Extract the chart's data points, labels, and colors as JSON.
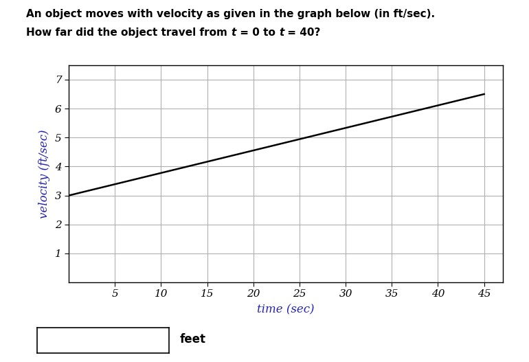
{
  "title_line1": "An object moves with velocity as given in the graph below (in ft/sec).",
  "title_line2_part1": "How far did the object travel from ",
  "title_t1": "t",
  "title_line2_part2": " = 0 to ",
  "title_t2": "t",
  "title_line2_part3": " = 40?",
  "xlabel": "time (sec)",
  "ylabel": "velocity (ft/sec)",
  "xlim": [
    0,
    47
  ],
  "ylim": [
    0,
    7.5
  ],
  "xticks": [
    5,
    10,
    15,
    20,
    25,
    30,
    35,
    40,
    45
  ],
  "yticks": [
    1,
    2,
    3,
    4,
    5,
    6,
    7
  ],
  "line_x": [
    0,
    45
  ],
  "line_y": [
    3.0,
    6.5
  ],
  "line_color": "#000000",
  "line_width": 1.8,
  "grid_color": "#b0b0b0",
  "axis_color": "#000000",
  "label_color": "#2222bb",
  "title_color": "#000000",
  "background_color": "#ffffff",
  "feet_label": "feet"
}
